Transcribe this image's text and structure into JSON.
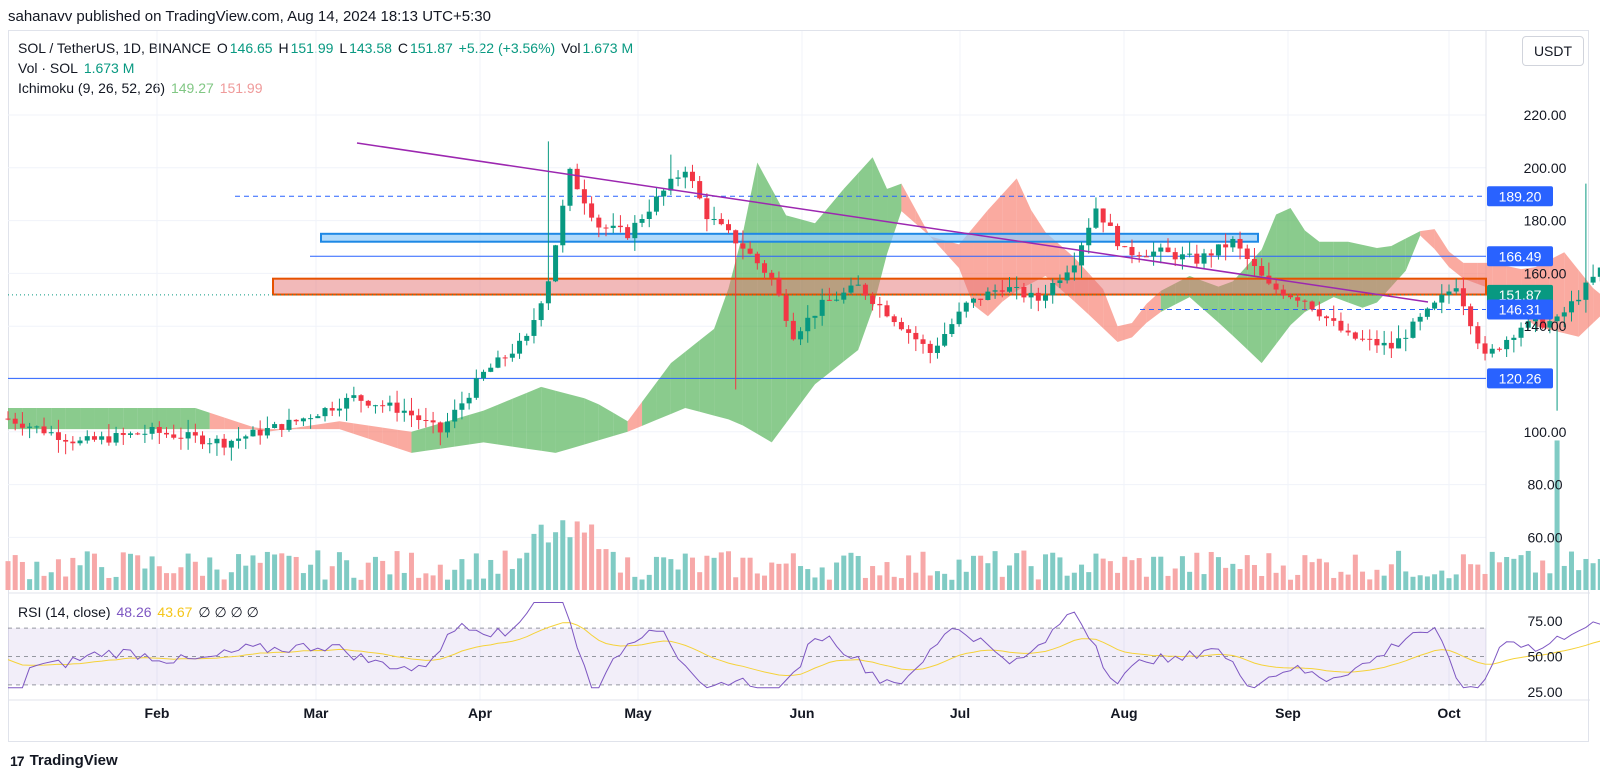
{
  "header": {
    "published": "sahanavv published on TradingView.com, Aug 14, 2024 18:13 UTC+5:30"
  },
  "legend": {
    "symbol": "SOL / TetherUS, 1D, BINANCE",
    "o_label": "O",
    "o": "146.65",
    "h_label": "H",
    "h": "151.99",
    "l_label": "L",
    "l": "143.58",
    "c_label": "C",
    "c": "151.87",
    "change": "+5.22 (+3.56%)",
    "vol_label": "Vol",
    "vol": "1.673 M",
    "vol_indicator": "Vol · SOL",
    "vol_indicator_value": "1.673 M",
    "ichimoku": "Ichimoku (9, 26, 52, 26)",
    "ichimoku_a": "149.27",
    "ichimoku_b": "151.99",
    "rsi": "RSI (14, close)",
    "rsi_value": "48.26",
    "rsi_ma": "43.67",
    "rsi_null": "∅ ∅ ∅ ∅"
  },
  "currency_button": "USDT",
  "footer": {
    "brand": "TradingView",
    "logo": "17"
  },
  "colors": {
    "up": "#089981",
    "down": "#f23645",
    "cloud_up": "#4caf50",
    "cloud_down": "#f77c6d",
    "rsi_line": "#7e57c2",
    "rsi_ma": "#f5d23a",
    "level_line": "#2962ff",
    "trend_line": "#9c27b0",
    "blue_zone": "#90caf9",
    "red_zone": "#e57373"
  },
  "chart_data": {
    "type": "candlestick",
    "y_ticks": [
      "220.00",
      "200.00",
      "180.00",
      "160.00",
      "140.00",
      "100.00",
      "80.00",
      "60.00"
    ],
    "x_ticks": [
      "Feb",
      "Mar",
      "Apr",
      "May",
      "Jun",
      "Jul",
      "Aug",
      "Sep",
      "Oct"
    ],
    "price_labels": [
      {
        "value": "189.20",
        "style": "dashed"
      },
      {
        "value": "166.49",
        "style": "solid"
      },
      {
        "value": "151.87",
        "style": "last"
      },
      {
        "value": "146.31",
        "style": "dashed"
      },
      {
        "value": "120.26",
        "style": "solid"
      }
    ],
    "zones": [
      {
        "name": "resistance",
        "from": 172,
        "to": 175
      },
      {
        "name": "support",
        "from": 151,
        "to": 157
      }
    ],
    "trendline": {
      "from": {
        "date": "Mar 1",
        "price": 209
      },
      "to": {
        "date": "Sep 28",
        "price": 148
      }
    },
    "rsi_ticks": [
      "75.00",
      "50.00",
      "25.00"
    ],
    "rsi_last": 48.26,
    "last_close": 151.87,
    "ohlc_range": {
      "low": 108,
      "high": 210
    }
  }
}
